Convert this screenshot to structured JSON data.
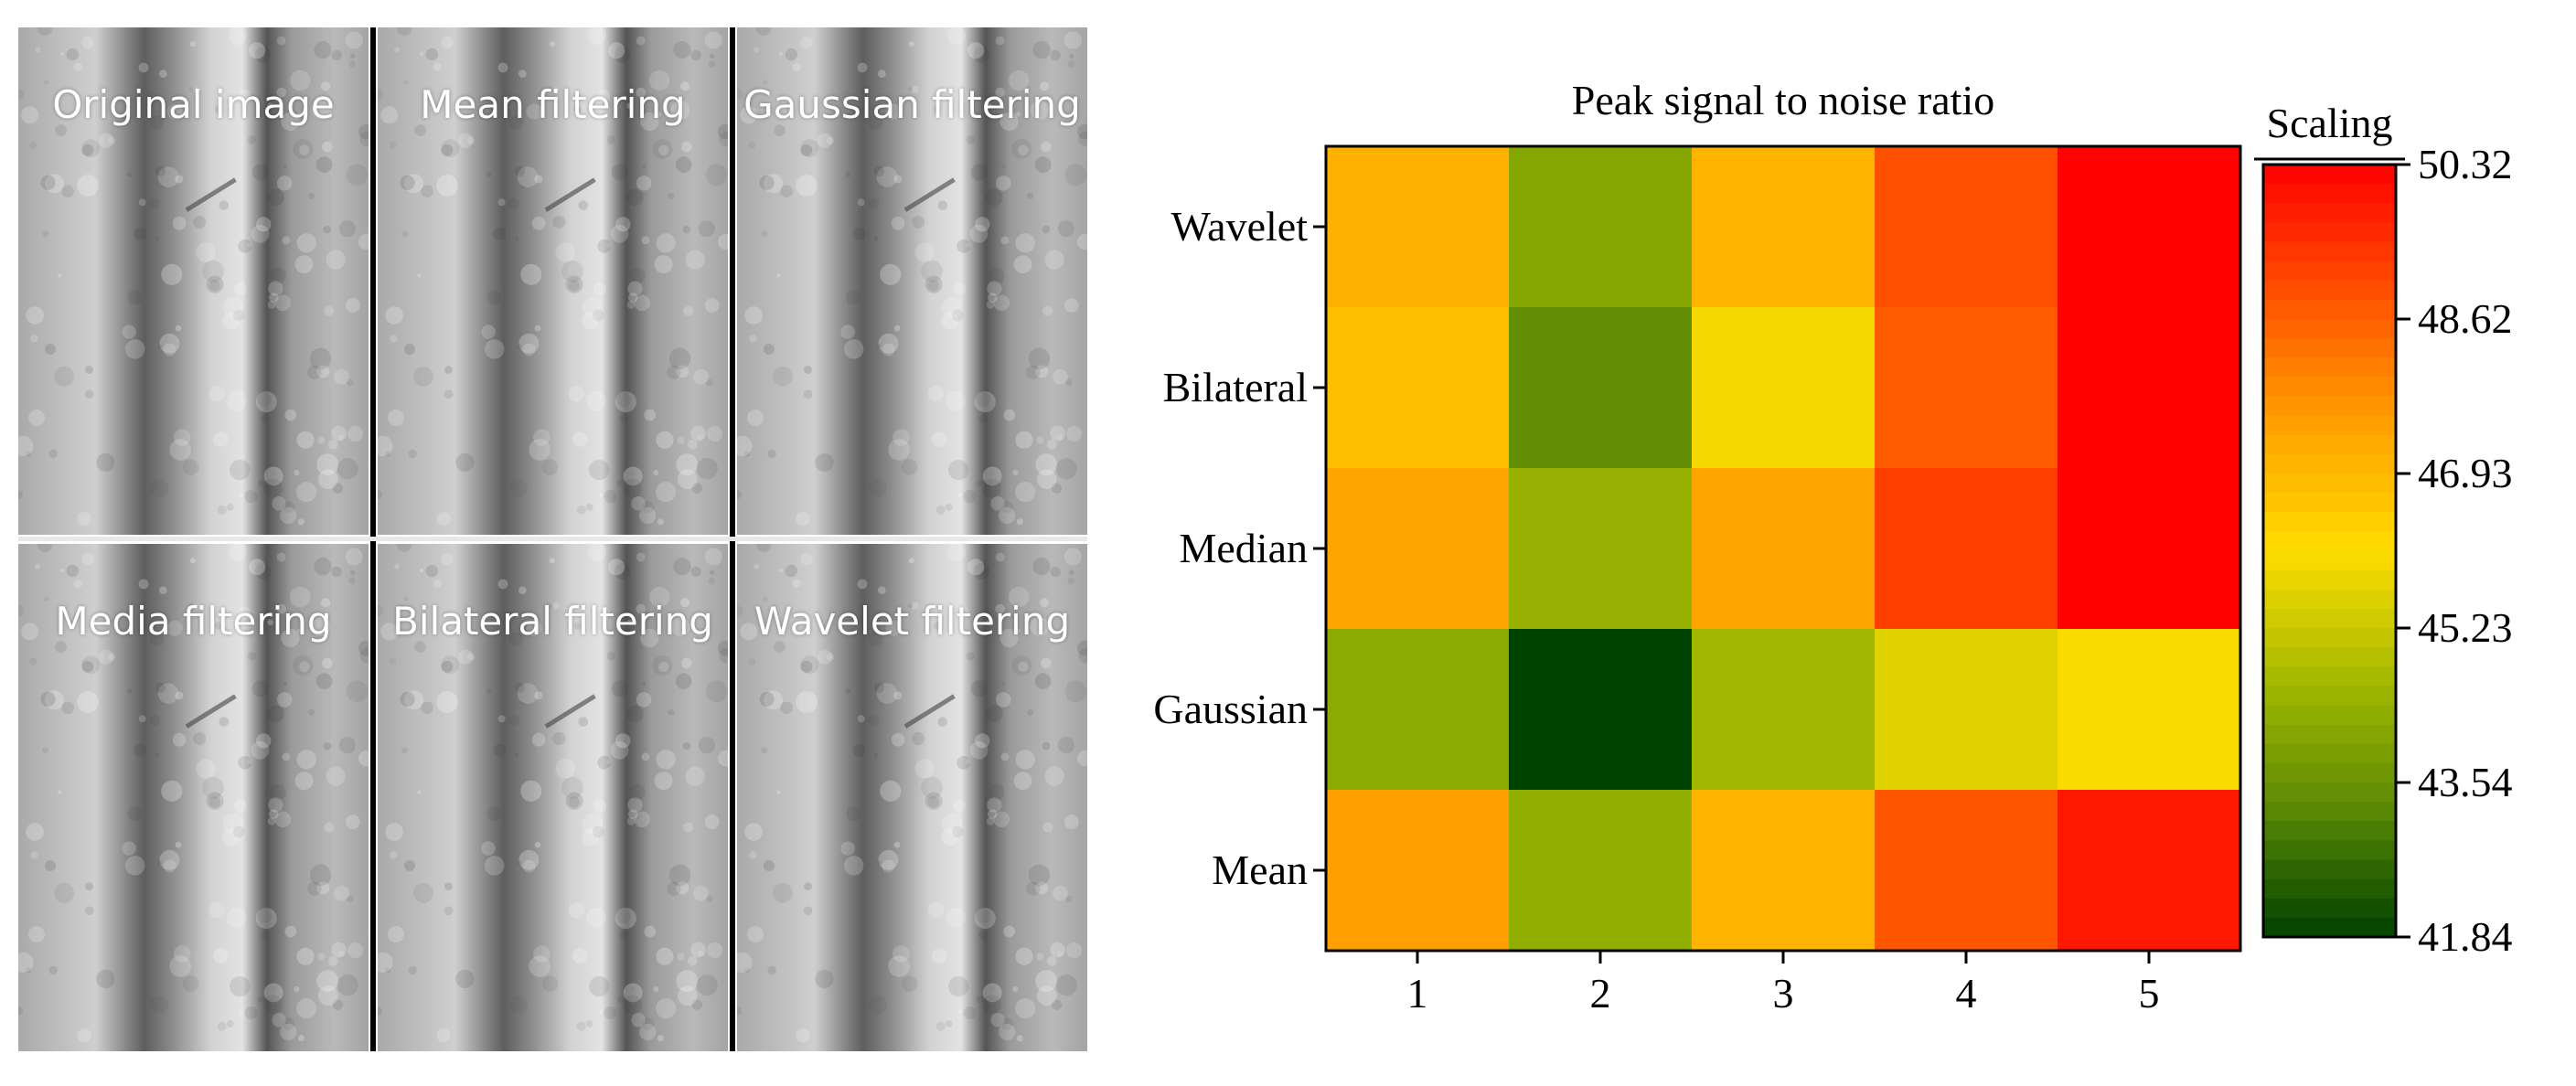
{
  "panels": {
    "items": [
      {
        "label": "Original image"
      },
      {
        "label": "Mean filtering"
      },
      {
        "label": "Gaussian filtering"
      },
      {
        "label": "Media filtering"
      },
      {
        "label": "Bilateral filtering"
      },
      {
        "label": "Wavelet filtering"
      }
    ]
  },
  "chart_data": {
    "type": "heatmap",
    "title": "Peak signal to noise ratio",
    "categories_x": [
      "1",
      "2",
      "3",
      "4",
      "5"
    ],
    "categories_y": [
      "Wavelet",
      "Bilateral",
      "Median",
      "Gaussian",
      "Mean"
    ],
    "values": [
      [
        47.1,
        44.1,
        47.0,
        48.9,
        50.3
      ],
      [
        46.8,
        43.4,
        45.9,
        48.7,
        50.3
      ],
      [
        47.4,
        44.4,
        47.4,
        49.2,
        50.3
      ],
      [
        44.2,
        41.84,
        44.6,
        45.6,
        46.0
      ],
      [
        47.5,
        44.3,
        47.0,
        48.8,
        49.9
      ]
    ],
    "colorbar": {
      "title": "Scaling",
      "min": 41.84,
      "max": 50.32,
      "ticks": [
        "50.32",
        "48.62",
        "46.93",
        "45.23",
        "43.54",
        "41.84"
      ],
      "colors": [
        "#004200",
        "#5a8a04",
        "#a4ba00",
        "#ffdd00",
        "#ffa000",
        "#ff5000",
        "#ff0000"
      ]
    }
  }
}
